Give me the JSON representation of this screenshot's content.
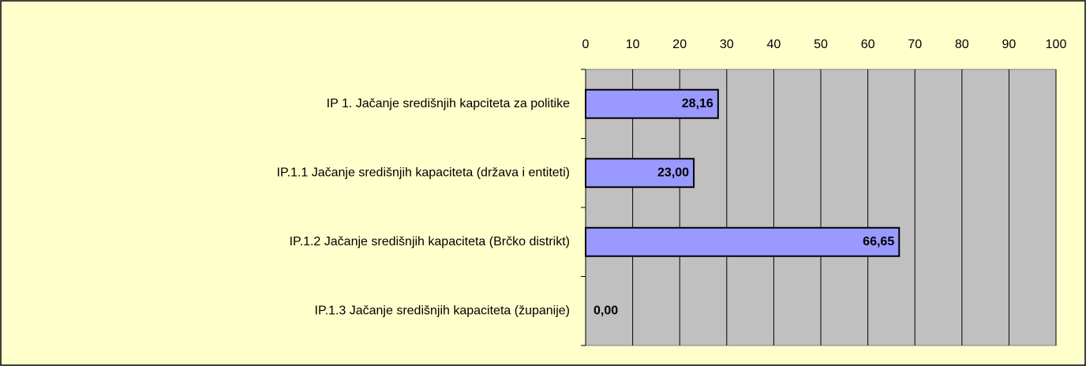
{
  "chart_data": {
    "type": "hbar",
    "categories": [
      "IP 1. Jačanje središnjih kapciteta za politike",
      "IP.1.1 Jačanje središnjih kapaciteta  (država i entiteti)",
      "IP.1.2 Jačanje središnjih kapaciteta (Brčko distrikt)",
      "IP.1.3 Jačanje središnjih kapaciteta (županije)"
    ],
    "values": [
      28.16,
      23.0,
      66.65,
      0
    ],
    "value_labels": [
      "28,16",
      "23,00",
      "66,65",
      "0,00"
    ],
    "color": "#9999ff",
    "xlim": [
      0,
      100
    ],
    "xticks": [
      0,
      10,
      20,
      30,
      40,
      50,
      60,
      70,
      80,
      90,
      100
    ],
    "grid": true
  }
}
